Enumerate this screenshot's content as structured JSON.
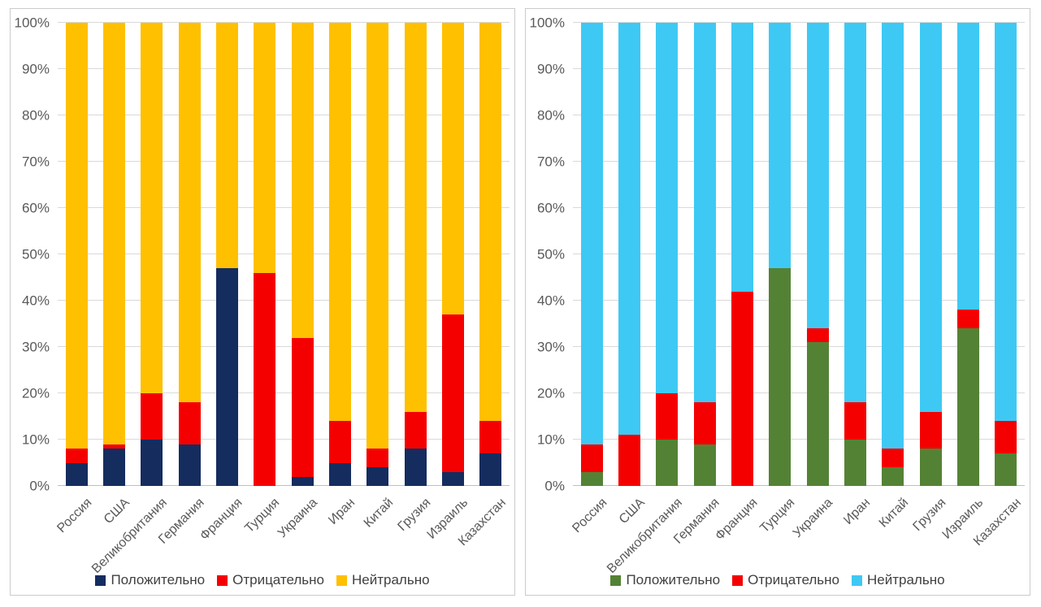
{
  "styles": {
    "grid_color": "#D9D9D9",
    "axis_line_color": "#BFBFBF",
    "tick_text_color": "#595959",
    "legend_text_color": "#404040",
    "panel_border_color": "#CBCBCB",
    "background_color": "#FFFFFF"
  },
  "chart_data": [
    {
      "type": "bar",
      "stacked": true,
      "stack_total": 100,
      "title": "",
      "xlabel": "",
      "ylabel": "",
      "ylim": [
        0,
        100
      ],
      "grid": true,
      "legend_position": "bottom",
      "y_ticks": [
        "0%",
        "10%",
        "20%",
        "30%",
        "40%",
        "50%",
        "60%",
        "70%",
        "80%",
        "90%",
        "100%"
      ],
      "categories": [
        "Россия",
        "США",
        "Великобритания",
        "Германия",
        "Франция",
        "Турция",
        "Украина",
        "Иран",
        "Китай",
        "Грузия",
        "Израиль",
        "Казахстан"
      ],
      "series": [
        {
          "name": "Положительно",
          "color": "#152C5F",
          "values": [
            5,
            8,
            10,
            9,
            47,
            0,
            2,
            5,
            4,
            8,
            3,
            7
          ]
        },
        {
          "name": "Отрицательно",
          "color": "#F40000",
          "values": [
            3,
            1,
            10,
            9,
            0,
            46,
            30,
            9,
            4,
            8,
            34,
            7
          ]
        },
        {
          "name": "Нейтрально",
          "color": "#FFC000",
          "values": [
            92,
            91,
            80,
            82,
            53,
            54,
            68,
            86,
            92,
            84,
            63,
            86
          ]
        }
      ]
    },
    {
      "type": "bar",
      "stacked": true,
      "stack_total": 100,
      "title": "",
      "xlabel": "",
      "ylabel": "",
      "ylim": [
        0,
        100
      ],
      "grid": true,
      "legend_position": "bottom",
      "y_ticks": [
        "0%",
        "10%",
        "20%",
        "30%",
        "40%",
        "50%",
        "60%",
        "70%",
        "80%",
        "90%",
        "100%"
      ],
      "categories": [
        "Россия",
        "США",
        "Великобритания",
        "Германия",
        "Франция",
        "Турция",
        "Украина",
        "Иран",
        "Китай",
        "Грузия",
        "Израиль",
        "Казахстан"
      ],
      "series": [
        {
          "name": "Положительно",
          "color": "#548235",
          "values": [
            3,
            0,
            10,
            9,
            0,
            47,
            31,
            10,
            4,
            8,
            34,
            7
          ]
        },
        {
          "name": "Отрицательно",
          "color": "#F40000",
          "values": [
            6,
            11,
            10,
            9,
            42,
            0,
            3,
            8,
            4,
            8,
            4,
            7
          ]
        },
        {
          "name": "Нейтрально",
          "color": "#3EC9F4",
          "values": [
            91,
            89,
            80,
            82,
            58,
            53,
            66,
            82,
            92,
            84,
            62,
            86
          ]
        }
      ]
    }
  ]
}
